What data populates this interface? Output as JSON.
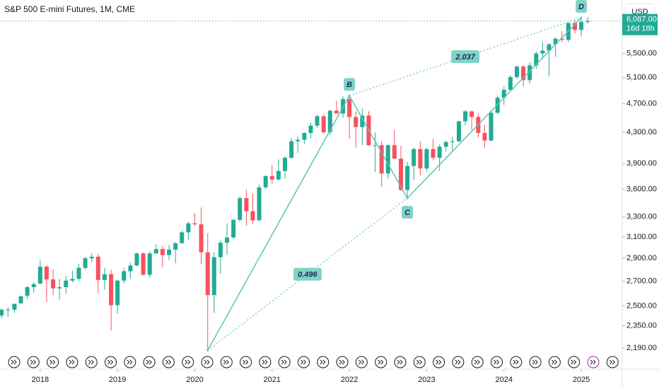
{
  "chart_data": {
    "type": "candlestick",
    "title": "S&P 500 E-mini Futures, 1M, CME",
    "currency": "USD",
    "countdown": "16d 18h",
    "last_price": {
      "value": 6087,
      "label": "6,087.00"
    },
    "up_color": "#22ab94",
    "down_color": "#f7525f",
    "log_scale": true,
    "x": [
      2017.5,
      2017.583,
      2017.667,
      2017.75,
      2017.833,
      2017.917,
      2018.0,
      2018.083,
      2018.167,
      2018.25,
      2018.333,
      2018.417,
      2018.5,
      2018.583,
      2018.667,
      2018.75,
      2018.833,
      2018.917,
      2019.0,
      2019.083,
      2019.167,
      2019.25,
      2019.333,
      2019.417,
      2019.5,
      2019.583,
      2019.667,
      2019.75,
      2019.833,
      2019.917,
      2020.0,
      2020.083,
      2020.167,
      2020.25,
      2020.333,
      2020.417,
      2020.5,
      2020.583,
      2020.667,
      2020.75,
      2020.833,
      2020.917,
      2021.0,
      2021.083,
      2021.167,
      2021.25,
      2021.333,
      2021.417,
      2021.5,
      2021.583,
      2021.667,
      2021.75,
      2021.833,
      2021.917,
      2022.0,
      2022.083,
      2022.167,
      2022.25,
      2022.333,
      2022.417,
      2022.5,
      2022.583,
      2022.667,
      2022.75,
      2022.833,
      2022.917,
      2023.0,
      2023.083,
      2023.167,
      2023.25,
      2023.333,
      2023.417,
      2023.5,
      2023.583,
      2023.667,
      2023.75,
      2023.833,
      2023.917,
      2024.0,
      2024.083,
      2024.167,
      2024.25,
      2024.333,
      2024.417,
      2024.5,
      2024.583,
      2024.667,
      2024.75,
      2024.833,
      2024.917,
      2025.0,
      2025.083
    ],
    "open": [
      2425,
      2470,
      2470,
      2520,
      2580,
      2650,
      2680,
      2825,
      2715,
      2640,
      2650,
      2705,
      2720,
      2815,
      2900,
      2915,
      2710,
      2760,
      2505,
      2705,
      2785,
      2835,
      2945,
      2755,
      2945,
      2985,
      2930,
      2980,
      3040,
      3145,
      3235,
      3225,
      2955,
      2585,
      2910,
      3045,
      3095,
      3270,
      3500,
      3360,
      3265,
      3620,
      3750,
      3710,
      3810,
      3970,
      4180,
      4200,
      4290,
      4390,
      4520,
      4300,
      4600,
      4560,
      4770,
      4510,
      4370,
      4530,
      4130,
      4130,
      3780,
      4130,
      3960,
      3590,
      3870,
      4080,
      3840,
      4080,
      3970,
      4110,
      4170,
      4180,
      4450,
      4590,
      4510,
      4290,
      4190,
      4570,
      4790,
      4910,
      5110,
      5280,
      5060,
      5300,
      5500,
      5550,
      5660,
      5760,
      5740,
      6050,
      5920,
      6070
    ],
    "high": [
      2480,
      2490,
      2520,
      2580,
      2660,
      2695,
      2880,
      2840,
      2800,
      2720,
      2745,
      2790,
      2850,
      2915,
      2945,
      2940,
      2815,
      2800,
      2710,
      2815,
      2860,
      2950,
      2955,
      2965,
      3030,
      3015,
      3025,
      3050,
      3160,
      3250,
      3340,
      3400,
      3135,
      2955,
      3070,
      3235,
      3280,
      3520,
      3590,
      3550,
      3650,
      3760,
      3880,
      3950,
      3990,
      4220,
      4240,
      4300,
      4430,
      4540,
      4550,
      4610,
      4745,
      4810,
      4820,
      4590,
      4630,
      4590,
      4300,
      4180,
      4140,
      4330,
      4120,
      3920,
      4100,
      4180,
      4100,
      4210,
      4140,
      4190,
      4240,
      4460,
      4610,
      4600,
      4560,
      4400,
      4600,
      4820,
      4960,
      5140,
      5290,
      5300,
      5350,
      5530,
      5700,
      5680,
      5780,
      5900,
      6050,
      6120,
      6150,
      6160
    ],
    "low": [
      2405,
      2415,
      2445,
      2515,
      2555,
      2605,
      2675,
      2530,
      2585,
      2550,
      2595,
      2690,
      2700,
      2800,
      2865,
      2600,
      2630,
      2315,
      2440,
      2680,
      2720,
      2830,
      2750,
      2730,
      2945,
      2820,
      2885,
      2855,
      3040,
      3070,
      3210,
      2850,
      2175,
      2445,
      2765,
      2930,
      3085,
      3250,
      3210,
      3230,
      3260,
      3600,
      3660,
      3700,
      3720,
      3960,
      4030,
      4150,
      4220,
      4360,
      4280,
      4260,
      4560,
      4500,
      4210,
      4100,
      4130,
      4120,
      3800,
      3630,
      3720,
      3950,
      3580,
      3500,
      3700,
      3760,
      3800,
      3940,
      3810,
      4050,
      4050,
      4170,
      4390,
      4330,
      4230,
      4100,
      4180,
      4550,
      4680,
      4900,
      5080,
      4960,
      5010,
      5240,
      5400,
      5120,
      5440,
      5700,
      5700,
      5850,
      5800,
      6030
    ],
    "close": [
      2470,
      2470,
      2515,
      2575,
      2650,
      2675,
      2825,
      2715,
      2640,
      2650,
      2705,
      2720,
      2815,
      2900,
      2915,
      2710,
      2760,
      2505,
      2705,
      2785,
      2835,
      2945,
      2755,
      2945,
      2985,
      2930,
      2980,
      3040,
      3145,
      3235,
      3225,
      2955,
      2585,
      2910,
      3045,
      3095,
      3270,
      3500,
      3360,
      3265,
      3620,
      3750,
      3710,
      3810,
      3970,
      4180,
      4200,
      4290,
      4390,
      4520,
      4300,
      4600,
      4560,
      4770,
      4510,
      4370,
      4530,
      4130,
      4130,
      3780,
      4130,
      3960,
      3590,
      3870,
      4080,
      3840,
      4080,
      3970,
      4110,
      4170,
      4180,
      4450,
      4590,
      4510,
      4290,
      4190,
      4570,
      4790,
      4910,
      5110,
      5280,
      5060,
      5300,
      5500,
      5550,
      5660,
      5760,
      5740,
      6050,
      5920,
      6070,
      6087
    ],
    "xlim": [
      2017.48,
      2025.53
    ],
    "ylim": [
      2060,
      6500
    ],
    "xticks": [
      2018,
      2019,
      2020,
      2021,
      2022,
      2023,
      2024,
      2025
    ],
    "yticks": [
      {
        "value": 2190,
        "label": "2,190.00"
      },
      {
        "value": 2350,
        "label": "2,350.00"
      },
      {
        "value": 2500,
        "label": "2,500.00"
      },
      {
        "value": 2700,
        "label": "2,700.00"
      },
      {
        "value": 2900,
        "label": "2,900.00"
      },
      {
        "value": 3100,
        "label": "3,100.00"
      },
      {
        "value": 3300,
        "label": "3,300.00"
      },
      {
        "value": 3600,
        "label": "3,600.00"
      },
      {
        "value": 3900,
        "label": "3,900.00"
      },
      {
        "value": 4300,
        "label": "4,300.00"
      },
      {
        "value": 4700,
        "label": "4,700.00"
      },
      {
        "value": 5100,
        "label": "5,100.00"
      },
      {
        "value": 5500,
        "label": "5,500.00"
      }
    ],
    "pattern": {
      "color": "#5fc4b5",
      "points": [
        {
          "x": 2020.167,
          "y": 2175
        },
        {
          "x": 2022.0,
          "y": 4820,
          "label": "B"
        },
        {
          "x": 2022.75,
          "y": 3500,
          "label": "C"
        },
        {
          "x": 2025.0,
          "y": 6150,
          "label": "D"
        }
      ],
      "ratios": [
        0.496,
        2.037
      ]
    }
  }
}
